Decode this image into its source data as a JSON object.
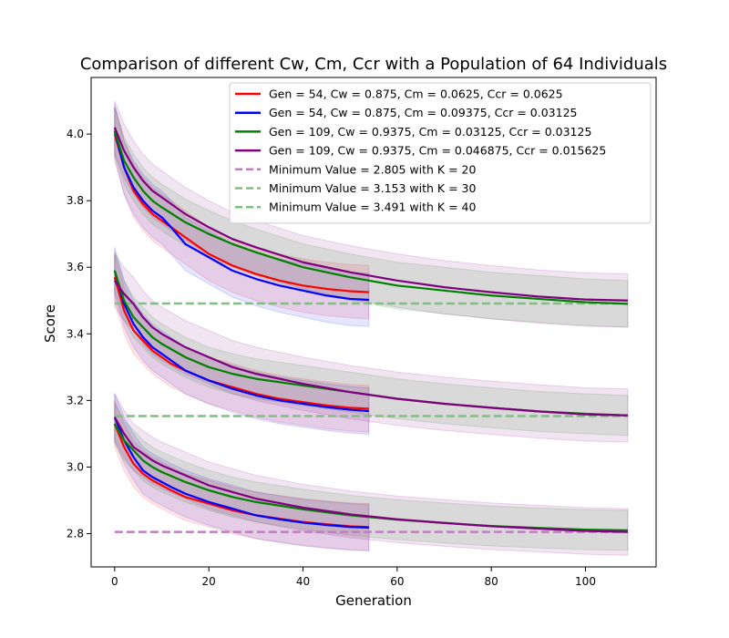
{
  "chart_data": {
    "type": "line",
    "title": "Comparison of different Cw, Cm, Ccr with a Population of 64 Individuals",
    "xlabel": "Generation",
    "ylabel": "Score",
    "xlim": [
      -5,
      115
    ],
    "ylim": [
      2.7,
      4.17
    ],
    "xticks": [
      0,
      20,
      40,
      60,
      80,
      100
    ],
    "yticks": [
      2.8,
      3.0,
      3.2,
      3.4,
      3.6,
      3.8,
      4.0
    ],
    "grid": false,
    "legend_position": "top-right",
    "series": [
      {
        "name": "Gen = 54, Cw = 0.875, Cm = 0.0625, Ccr = 0.0625",
        "color": "#ff0000",
        "max_gen": 54,
        "curves": [
          {
            "K": 20,
            "x": [
              0,
              2,
              4,
              6,
              8,
              10,
              12,
              15,
              20,
              25,
              30,
              35,
              40,
              45,
              50,
              54
            ],
            "y": [
              3.13,
              3.06,
              3.01,
              2.98,
              2.96,
              2.945,
              2.93,
              2.91,
              2.89,
              2.87,
              2.855,
              2.845,
              2.835,
              2.828,
              2.822,
              2.82
            ],
            "band": 0.07
          },
          {
            "K": 30,
            "x": [
              0,
              2,
              4,
              6,
              8,
              10,
              12,
              15,
              20,
              25,
              30,
              35,
              40,
              45,
              50,
              54
            ],
            "y": [
              3.57,
              3.47,
              3.41,
              3.38,
              3.35,
              3.33,
              3.31,
              3.29,
              3.26,
              3.24,
              3.22,
              3.205,
              3.195,
              3.185,
              3.178,
              3.175
            ],
            "band": 0.07
          },
          {
            "K": 40,
            "x": [
              0,
              2,
              4,
              6,
              8,
              10,
              12,
              15,
              20,
              25,
              30,
              35,
              40,
              45,
              50,
              54
            ],
            "y": [
              4.0,
              3.9,
              3.83,
              3.79,
              3.76,
              3.74,
              3.72,
              3.69,
              3.64,
              3.605,
              3.58,
              3.56,
              3.545,
              3.535,
              3.528,
              3.525
            ],
            "band": 0.08
          }
        ]
      },
      {
        "name": "Gen = 54, Cw = 0.875, Cm = 0.09375, Ccr = 0.03125",
        "color": "#0000ff",
        "max_gen": 54,
        "curves": [
          {
            "K": 20,
            "x": [
              0,
              2,
              4,
              6,
              8,
              10,
              12,
              15,
              20,
              25,
              30,
              35,
              40,
              45,
              50,
              54
            ],
            "y": [
              3.15,
              3.08,
              3.03,
              2.99,
              2.97,
              2.955,
              2.94,
              2.92,
              2.895,
              2.875,
              2.855,
              2.843,
              2.833,
              2.826,
              2.82,
              2.818
            ],
            "band": 0.07
          },
          {
            "K": 30,
            "x": [
              0,
              2,
              4,
              6,
              8,
              10,
              12,
              15,
              20,
              25,
              30,
              35,
              40,
              45,
              50,
              54
            ],
            "y": [
              3.59,
              3.49,
              3.43,
              3.39,
              3.36,
              3.34,
              3.32,
              3.29,
              3.26,
              3.235,
              3.215,
              3.2,
              3.19,
              3.18,
              3.172,
              3.168
            ],
            "band": 0.07
          },
          {
            "K": 40,
            "x": [
              0,
              2,
              4,
              6,
              8,
              10,
              12,
              15,
              20,
              25,
              30,
              35,
              40,
              45,
              50,
              54
            ],
            "y": [
              4.01,
              3.9,
              3.84,
              3.8,
              3.77,
              3.75,
              3.72,
              3.67,
              3.63,
              3.59,
              3.565,
              3.545,
              3.53,
              3.515,
              3.505,
              3.502
            ],
            "band": 0.08
          }
        ]
      },
      {
        "name": "Gen = 109, Cw = 0.9375, Cm = 0.03125, Ccr = 0.03125",
        "color": "#008000",
        "max_gen": 109,
        "curves": [
          {
            "K": 20,
            "x": [
              0,
              2,
              4,
              6,
              8,
              10,
              15,
              20,
              25,
              30,
              40,
              50,
              60,
              70,
              80,
              90,
              100,
              109
            ],
            "y": [
              3.13,
              3.08,
              3.05,
              3.02,
              3.0,
              2.985,
              2.955,
              2.93,
              2.91,
              2.895,
              2.873,
              2.855,
              2.842,
              2.832,
              2.823,
              2.817,
              2.812,
              2.81
            ],
            "band": 0.06
          },
          {
            "K": 30,
            "x": [
              0,
              2,
              4,
              6,
              8,
              10,
              15,
              20,
              25,
              30,
              40,
              50,
              60,
              70,
              80,
              90,
              100,
              109
            ],
            "y": [
              3.59,
              3.5,
              3.45,
              3.42,
              3.39,
              3.37,
              3.33,
              3.3,
              3.28,
              3.265,
              3.245,
              3.225,
              3.205,
              3.19,
              3.178,
              3.167,
              3.16,
              3.155
            ],
            "band": 0.06
          },
          {
            "K": 40,
            "x": [
              0,
              2,
              4,
              6,
              8,
              10,
              15,
              20,
              25,
              30,
              40,
              50,
              60,
              70,
              80,
              90,
              100,
              109
            ],
            "y": [
              4.01,
              3.92,
              3.87,
              3.83,
              3.8,
              3.78,
              3.735,
              3.7,
              3.67,
              3.645,
              3.6,
              3.57,
              3.545,
              3.53,
              3.515,
              3.505,
              3.495,
              3.49
            ],
            "band": 0.07
          }
        ]
      },
      {
        "name": "Gen = 109, Cw = 0.9375, Cm = 0.046875, Ccr = 0.015625",
        "color": "#800080",
        "max_gen": 109,
        "curves": [
          {
            "K": 20,
            "x": [
              0,
              2,
              4,
              6,
              8,
              10,
              15,
              20,
              25,
              30,
              40,
              50,
              60,
              70,
              80,
              90,
              100,
              109
            ],
            "y": [
              3.15,
              3.1,
              3.06,
              3.04,
              3.02,
              3.005,
              2.975,
              2.945,
              2.925,
              2.905,
              2.878,
              2.858,
              2.843,
              2.832,
              2.822,
              2.815,
              2.808,
              2.805
            ],
            "band": 0.07
          },
          {
            "K": 30,
            "x": [
              0,
              2,
              4,
              6,
              8,
              10,
              15,
              20,
              25,
              30,
              40,
              50,
              60,
              70,
              80,
              90,
              100,
              109
            ],
            "y": [
              3.56,
              3.52,
              3.49,
              3.45,
              3.42,
              3.4,
              3.36,
              3.33,
              3.3,
              3.28,
              3.25,
              3.225,
              3.205,
              3.19,
              3.178,
              3.167,
              3.158,
              3.155
            ],
            "band": 0.08
          },
          {
            "K": 40,
            "x": [
              0,
              2,
              4,
              6,
              8,
              10,
              15,
              20,
              25,
              30,
              40,
              50,
              60,
              70,
              80,
              90,
              100,
              109
            ],
            "y": [
              4.02,
              3.95,
              3.9,
              3.86,
              3.83,
              3.81,
              3.76,
              3.72,
              3.685,
              3.66,
              3.615,
              3.585,
              3.56,
              3.54,
              3.525,
              3.512,
              3.503,
              3.5
            ],
            "band": 0.08
          }
        ]
      }
    ],
    "reference_lines": [
      {
        "name": "Minimum Value = 2.805 with K = 20",
        "y": 2.805,
        "color": "#bf7fbf",
        "x": [
          0,
          109
        ]
      },
      {
        "name": "Minimum Value = 3.153 with K = 30",
        "y": 3.153,
        "color": "#7fbf7f",
        "x": [
          0,
          109
        ]
      },
      {
        "name": "Minimum Value = 3.491 with K = 40",
        "y": 3.491,
        "color": "#7fbf7f",
        "x": [
          0,
          109
        ]
      }
    ]
  }
}
